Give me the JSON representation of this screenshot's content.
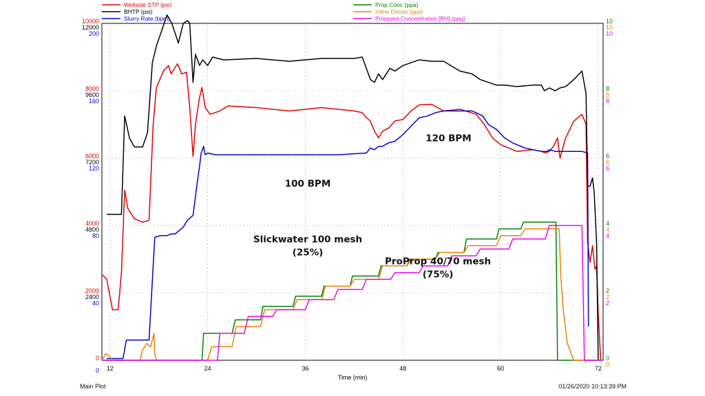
{
  "footer": {
    "left": "Main Plot",
    "right": "01/26/2020 10:13:39 PM"
  },
  "chart_data": {
    "type": "line",
    "xlabel": "Time (min)",
    "xlim": [
      11,
      72.6
    ],
    "x_ticks": [
      12,
      24,
      36,
      48,
      60,
      72
    ],
    "annotations": [
      {
        "lines": [
          "120 BPM"
        ],
        "x": 53.6,
        "left_axis": "wellside",
        "y": 6500
      },
      {
        "lines": [
          "100 BPM"
        ],
        "x": 36.3,
        "left_axis": "wellside",
        "y": 5150
      },
      {
        "lines": [
          "Slickwater 100 mesh",
          "(25%)"
        ],
        "x": 36.3,
        "left_axis": "wellside",
        "y": 3500
      },
      {
        "lines": [
          "ProProp 40/70 mesh",
          "(75%)"
        ],
        "x": 52.3,
        "left_axis": "wellside",
        "y": 2850
      }
    ],
    "left_axes": [
      {
        "key": "wellside",
        "color": "#e00000",
        "min": 0,
        "max": 10000,
        "ticks": [
          0,
          2000,
          4000,
          6000,
          8000,
          10000
        ]
      },
      {
        "key": "bhtp",
        "color": "#000000",
        "min": 0,
        "max": 12000,
        "ticks": [
          2400,
          4800,
          7200,
          9600,
          12000
        ]
      },
      {
        "key": "slurry",
        "color": "#0000cc",
        "min": 0,
        "max": 200,
        "ticks": [
          0,
          40,
          80,
          120,
          160,
          200
        ]
      }
    ],
    "right_axes": [
      {
        "key": "prop",
        "color": "#008000",
        "min": 0,
        "max": 10,
        "ticks": [
          0,
          2,
          4,
          6,
          8,
          10
        ]
      },
      {
        "key": "inline",
        "color": "#f08000",
        "min": 0,
        "max": 10,
        "ticks": [
          0,
          2,
          4,
          6,
          8,
          10
        ]
      },
      {
        "key": "bh",
        "color": "#ee00ee",
        "min": 0,
        "max": 10,
        "ticks": [
          2,
          4,
          6,
          8,
          10
        ]
      }
    ],
    "legend_left": [
      {
        "name": "Wellside STP  (psi)",
        "color": "#e00000"
      },
      {
        "name": "BHTP  (psi)",
        "color": "#000000"
      },
      {
        "name": "Slurry Rate  (bpm)",
        "color": "#0000cc"
      }
    ],
    "legend_right": [
      {
        "name": "Prop Conc  (ppa)",
        "color": "#008000"
      },
      {
        "name": "Inline Denso  (ppa)",
        "color": "#f08000"
      },
      {
        "name": "Proppant Concentration [BH]  (ppg)",
        "color": "#ee00ee"
      }
    ],
    "series": [
      {
        "name": "Wellside STP",
        "axis": "wellside",
        "color": "#e00000",
        "x": [
          11,
          11.6,
          12.3,
          13,
          13.4,
          13.8,
          14.2,
          15,
          16,
          16.8,
          17.3,
          17.7,
          18.6,
          19.2,
          19.5,
          20.3,
          20.8,
          21.4,
          21.8,
          22.2,
          22.5,
          23,
          23.3,
          23.7,
          24.3,
          25.5,
          26.5,
          30,
          34,
          38,
          42,
          43,
          43.5,
          44,
          44.5,
          45,
          45.5,
          46.3,
          47,
          48,
          49,
          50,
          51.5,
          53,
          55,
          57,
          58,
          59,
          60,
          62,
          64,
          65,
          65.5,
          66,
          66.5,
          67,
          67.3,
          68,
          69,
          70,
          70.5,
          70.7,
          71,
          71.3,
          71.6,
          71.8,
          72,
          72.3
        ],
        "y": [
          2550,
          2400,
          1500,
          1500,
          2600,
          5050,
          4500,
          4200,
          4100,
          4150,
          7000,
          8100,
          8600,
          8750,
          8500,
          8800,
          8500,
          8550,
          7500,
          6050,
          7000,
          7800,
          8100,
          7500,
          7300,
          7400,
          7550,
          7500,
          7400,
          7500,
          7400,
          7350,
          7200,
          7100,
          6800,
          6600,
          6800,
          6900,
          7100,
          7150,
          7400,
          7580,
          7600,
          7400,
          7450,
          7300,
          7000,
          6600,
          6400,
          6200,
          6250,
          6200,
          6150,
          6200,
          6350,
          6600,
          6000,
          6600,
          7100,
          7300,
          7000,
          3500,
          2900,
          3400,
          2700,
          2800,
          1400,
          0
        ]
      },
      {
        "name": "BHTP",
        "axis": "bhtp",
        "color": "#000000",
        "x": [
          11.6,
          12.4,
          13.4,
          13.8,
          14.4,
          15,
          16,
          16.6,
          17.2,
          17.7,
          18.3,
          19,
          19.6,
          20.4,
          21,
          21.5,
          21.8,
          22.2,
          22.5,
          23,
          23.4,
          24,
          24.6,
          26,
          30,
          34,
          38,
          42,
          43,
          43.5,
          44,
          44.5,
          45,
          45.5,
          46.4,
          47,
          48,
          49,
          50,
          51.5,
          53,
          55,
          56.5,
          57.5,
          58.5,
          59.5,
          60.5,
          62,
          64,
          65,
          65.4,
          66,
          66.7,
          67.3,
          68,
          69,
          70,
          70.5,
          70.7,
          71,
          71.3,
          71.5,
          71.8,
          72
        ],
        "y": [
          5200,
          5200,
          5200,
          8700,
          7900,
          7600,
          7600,
          8100,
          10600,
          11200,
          11700,
          12300,
          12000,
          11300,
          12000,
          12100,
          12000,
          9900,
          10900,
          10500,
          10700,
          10500,
          10800,
          10700,
          10750,
          10650,
          10750,
          10750,
          10800,
          10400,
          10000,
          9900,
          10200,
          10000,
          10400,
          10300,
          10500,
          10600,
          10700,
          10650,
          10650,
          10300,
          10200,
          10000,
          9900,
          9800,
          9800,
          9750,
          9800,
          9800,
          9600,
          9700,
          9600,
          9700,
          9750,
          10000,
          10300,
          9500,
          6200,
          6200,
          6500,
          6000,
          4200,
          0
        ]
      },
      {
        "name": "Slurry Rate",
        "axis": "slurry",
        "color": "#0000cc",
        "x": [
          11.6,
          12,
          13.6,
          14,
          15,
          16,
          16.8,
          17.5,
          18.2,
          19,
          19.5,
          20,
          21,
          21.5,
          22.2,
          22.7,
          23,
          23.2,
          23.5,
          23.7,
          24,
          25,
          30,
          35,
          40,
          43.5,
          44,
          44.5,
          45,
          45.5,
          46.2,
          47,
          48,
          49,
          50,
          51,
          52,
          53,
          54,
          55,
          56,
          56.5,
          57,
          57.8,
          58.5,
          59.5,
          60.5,
          61.5,
          62.5,
          63,
          64,
          65,
          65.7,
          66,
          66.7,
          70,
          70.7,
          70.8
        ],
        "y": [
          1,
          1,
          1,
          12,
          12,
          12,
          12,
          73,
          74,
          74,
          75,
          75,
          79,
          83,
          86,
          105,
          115,
          123,
          127,
          122,
          123,
          122,
          122,
          122,
          122,
          123,
          126,
          125,
          127,
          127,
          129,
          130,
          134,
          139,
          144,
          145,
          147,
          148,
          148,
          148,
          148,
          148,
          147,
          145,
          140,
          137,
          132,
          129,
          127,
          126,
          125,
          124,
          124,
          125,
          124,
          124,
          123,
          20
        ]
      },
      {
        "name": "Prop Conc",
        "axis": "prop",
        "color": "#008000",
        "x": [
          11,
          23.3,
          23.5,
          27,
          27.4,
          30.5,
          30.8,
          34.5,
          34.8,
          38,
          38.3,
          41.5,
          41.8,
          45,
          45.3,
          48.5,
          48.8,
          52,
          52.3,
          55.5,
          55.8,
          59.5,
          59.8,
          62.5,
          62.8,
          66.8,
          67,
          70.5,
          70.8,
          72.4
        ],
        "y": [
          0,
          0,
          0.8,
          0.8,
          1.2,
          1.2,
          1.6,
          1.6,
          1.9,
          1.9,
          2.2,
          2.2,
          2.5,
          2.5,
          2.8,
          2.8,
          3.0,
          3.0,
          3.2,
          3.2,
          3.6,
          3.6,
          3.9,
          3.9,
          4.1,
          4.1,
          0,
          0,
          0,
          0
        ]
      },
      {
        "name": "Inline Denso",
        "axis": "inline",
        "color": "#f08000",
        "x": [
          11,
          11.5,
          12,
          12.3,
          15.7,
          16,
          16.5,
          17,
          17.4,
          17.5,
          17.7,
          24,
          24.5,
          27,
          27.5,
          30.5,
          31,
          34.5,
          35,
          38,
          38.5,
          41.5,
          42,
          45,
          45.5,
          48.5,
          49,
          52,
          52.5,
          55.5,
          56,
          59.5,
          60,
          62.5,
          63,
          66,
          67.2,
          67.4,
          67.7,
          68.2,
          69,
          70,
          72
        ],
        "y": [
          0,
          0.2,
          0.1,
          0,
          0,
          0.3,
          0.5,
          0.4,
          0.8,
          0.2,
          0,
          0,
          0.4,
          0.4,
          1.0,
          1.0,
          1.5,
          1.5,
          1.8,
          1.8,
          2.2,
          2.2,
          2.4,
          2.4,
          2.8,
          2.8,
          3.0,
          3.0,
          3.2,
          3.2,
          3.4,
          3.4,
          3.7,
          3.7,
          3.9,
          3.9,
          3.9,
          2.5,
          1.5,
          0.5,
          0,
          0,
          0
        ]
      },
      {
        "name": "Proppant Concentration [BH]",
        "axis": "bh",
        "color": "#ee00ee",
        "x": [
          11,
          25.2,
          25.5,
          28.5,
          29,
          32,
          32.5,
          36,
          36.5,
          39.5,
          40,
          43,
          43.5,
          46.5,
          47,
          50,
          50.5,
          53.5,
          54,
          57,
          57.5,
          61,
          61.5,
          65.5,
          66,
          69.5,
          70,
          70.3,
          72.4
        ],
        "y": [
          0,
          0,
          0.8,
          0.8,
          1.3,
          1.3,
          1.5,
          1.5,
          1.8,
          1.8,
          2.1,
          2.1,
          2.4,
          2.4,
          2.6,
          2.6,
          2.8,
          2.8,
          3.1,
          3.1,
          3.3,
          3.3,
          3.6,
          3.6,
          4.0,
          4.0,
          4.0,
          0,
          0
        ]
      }
    ]
  }
}
